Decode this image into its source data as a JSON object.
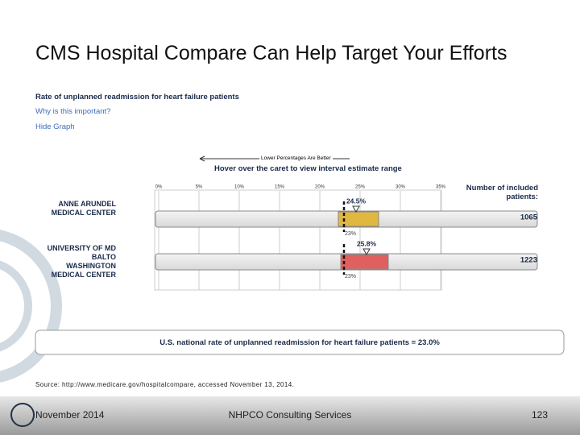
{
  "slide": {
    "title": "CMS Hospital Compare Can Help Target Your Efforts",
    "source": "Source: http://www.medicare.gov/hospitalcompare, accessed November 13, 2014.",
    "footer_left": "November 2014",
    "footer_center": "NHPCO Consulting Services",
    "page": "123"
  },
  "chart_data": {
    "type": "bar",
    "title": "Rate of unplanned readmission for heart failure patients",
    "link_why": "Why is this important?",
    "link_hide": "Hide Graph",
    "direction_note": "Lower Percentages Are Better",
    "hover_note": "Hover over the caret to view interval estimate range",
    "count_header": "Number of included\npatients:",
    "categories": [
      "ANNE ARUNDEL\nMEDICAL CENTER",
      "UNIVERSITY OF MD\nBALTO\nWASHINGTON\nMEDICAL CENTER"
    ],
    "values": [
      24.5,
      25.8
    ],
    "value_labels": [
      "24.5%",
      "25.8%"
    ],
    "interval_low": [
      22.3,
      22.6
    ],
    "interval_high": [
      27.3,
      28.5
    ],
    "colors": [
      "#e0b840",
      "#e06060"
    ],
    "patients": [
      1065,
      1223
    ],
    "national_rate": 23,
    "national_label": "23%",
    "national_note": "U.S. national rate of unplanned readmission for heart failure patients = 23.0%",
    "xlim": [
      0,
      35
    ],
    "xticks": [
      {
        "value": 0,
        "label": "0%"
      },
      {
        "value": 5,
        "label": "5%"
      },
      {
        "value": 10,
        "label": "10%"
      },
      {
        "value": 15,
        "label": "15%"
      },
      {
        "value": 20,
        "label": "20%"
      },
      {
        "value": 25,
        "label": "25%"
      },
      {
        "value": 30,
        "label": "30%"
      },
      {
        "value": 35,
        "label": "35%"
      }
    ],
    "grid": true
  }
}
